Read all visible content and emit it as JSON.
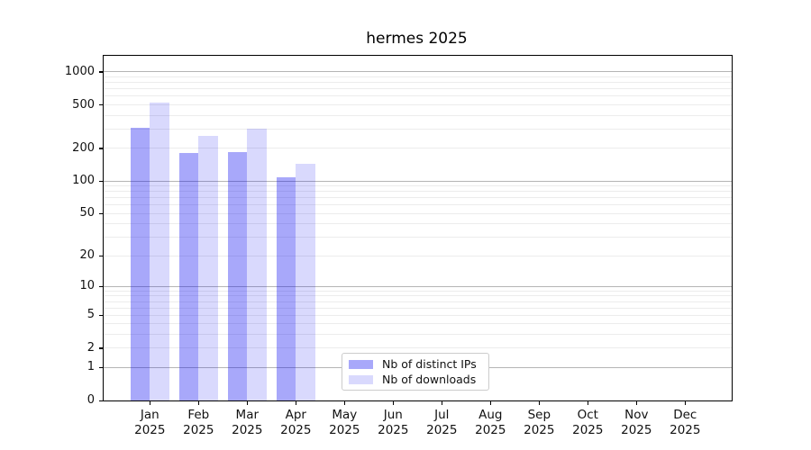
{
  "title": "hermes 2025",
  "legend": {
    "items": [
      {
        "label": "Nb of distinct IPs",
        "color": "#0000F0",
        "alpha": 0.34
      },
      {
        "label": "Nb of downloads",
        "color": "#0000F0",
        "alpha": 0.15
      }
    ]
  },
  "chart_data": {
    "type": "bar",
    "title": "hermes 2025",
    "categories": [
      "Jan",
      "Feb",
      "Mar",
      "Apr",
      "May",
      "Jun",
      "Jul",
      "Aug",
      "Sep",
      "Oct",
      "Nov",
      "Dec"
    ],
    "category_year": "2025",
    "series": [
      {
        "name": "Nb of distinct IPs",
        "color": "#0000F0",
        "alpha": 0.34,
        "values": [
          310,
          180,
          185,
          108,
          null,
          null,
          null,
          null,
          null,
          null,
          null,
          null
        ]
      },
      {
        "name": "Nb of downloads",
        "color": "#0000F0",
        "alpha": 0.15,
        "values": [
          525,
          260,
          300,
          145,
          null,
          null,
          null,
          null,
          null,
          null,
          null,
          null
        ]
      }
    ],
    "y_scale": "log1p",
    "y_ticks": [
      0,
      1,
      2,
      5,
      10,
      20,
      50,
      100,
      200,
      500,
      1000
    ],
    "y_minor_gridlines": [
      2,
      3,
      4,
      5,
      6,
      7,
      8,
      9,
      20,
      30,
      40,
      50,
      60,
      70,
      80,
      90,
      200,
      300,
      400,
      500,
      600,
      700,
      800,
      900
    ],
    "y_major_gridlines": [
      1,
      10,
      100,
      1000
    ],
    "ylim": [
      0,
      1400
    ],
    "xlabel": "",
    "ylabel": "",
    "grid": "both",
    "legend_position": "inside bottom-center",
    "colors": {
      "background": "#ffffff",
      "major_grid": "#b5b5b5",
      "minor_grid": "#ececec",
      "spine": "#000000",
      "text": "#111111"
    }
  }
}
